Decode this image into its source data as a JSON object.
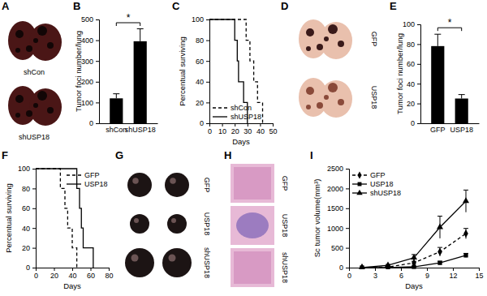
{
  "chart_data": [
    {
      "type": "bar",
      "title": "B",
      "categories": [
        "shCon",
        "shUSP18"
      ],
      "values": [
        120,
        395
      ],
      "errors": [
        22,
        60
      ],
      "color": "#000000",
      "ylim": [
        0,
        500
      ],
      "yticks": [
        0,
        100,
        200,
        300,
        400,
        500
      ],
      "y_label": "Tumor foci number/lung",
      "annotations": [
        "*"
      ]
    },
    {
      "type": "step",
      "title": "C",
      "x_label": "Days",
      "y_label": "Percentual surviving",
      "xlim": [
        0,
        50
      ],
      "xticks": [
        0,
        10,
        20,
        30,
        40,
        50
      ],
      "ylim": [
        0,
        100
      ],
      "yticks": [
        0,
        20,
        40,
        60,
        80,
        100
      ],
      "legend": "lower left",
      "series": [
        {
          "name": "shCon",
          "color": "#000000",
          "line_style": "dashed",
          "x": [
            0,
            29,
            32,
            35,
            38,
            42
          ],
          "values": [
            100,
            80,
            60,
            40,
            20,
            0
          ]
        },
        {
          "name": "shUSP18",
          "color": "#000000",
          "line_style": "solid",
          "x": [
            0,
            20,
            22,
            23,
            27,
            30
          ],
          "values": [
            100,
            80,
            60,
            40,
            20,
            0
          ]
        }
      ]
    },
    {
      "type": "bar",
      "title": "E",
      "categories": [
        "GFP",
        "USP18"
      ],
      "values": [
        78,
        25
      ],
      "errors": [
        12,
        4
      ],
      "color": "#000000",
      "ylim": [
        0,
        100
      ],
      "yticks": [
        0,
        20,
        40,
        60,
        80,
        100
      ],
      "y_label": "Tumor foci number/lung",
      "annotations": [
        "*"
      ]
    },
    {
      "type": "step",
      "title": "F",
      "x_label": "Days",
      "y_label": "Percentual surviving",
      "xlim": [
        0,
        80
      ],
      "xticks": [
        0,
        20,
        40,
        60,
        80
      ],
      "ylim": [
        0,
        100
      ],
      "yticks": [
        0,
        20,
        40,
        60,
        80,
        100
      ],
      "legend": "upper right",
      "series": [
        {
          "name": "GFP",
          "color": "#000000",
          "line_style": "dashed",
          "x": [
            0,
            27,
            32,
            35,
            40,
            45
          ],
          "values": [
            100,
            80,
            60,
            40,
            20,
            0
          ]
        },
        {
          "name": "USP18",
          "color": "#000000",
          "line_style": "solid",
          "x": [
            0,
            45,
            48,
            50,
            52,
            63
          ],
          "values": [
            100,
            80,
            60,
            40,
            20,
            0
          ]
        }
      ]
    },
    {
      "type": "line",
      "title": "I",
      "x_label": "Days",
      "y_label": "Sc tumor volume(mm³)",
      "xlim": [
        0,
        15
      ],
      "xticks": [
        0,
        3,
        6,
        9,
        12,
        15
      ],
      "ylim": [
        0,
        2500
      ],
      "yticks": [
        0,
        500,
        1000,
        1500,
        2000,
        2500
      ],
      "legend": "upper left",
      "series": [
        {
          "name": "GFP",
          "color": "#000000",
          "line_style": "dashed",
          "marker": "diamond",
          "x": [
            1.5,
            4.5,
            7.5,
            10.5,
            13.5
          ],
          "values": [
            0,
            15,
            120,
            400,
            860
          ],
          "errors": [
            0,
            5,
            40,
            110,
            130
          ]
        },
        {
          "name": "USP18",
          "color": "#000000",
          "line_style": "solid",
          "marker": "square",
          "x": [
            1.5,
            4.5,
            7.5,
            10.5,
            13.5
          ],
          "values": [
            0,
            0,
            20,
            120,
            310
          ],
          "errors": [
            0,
            0,
            10,
            40,
            50
          ]
        },
        {
          "name": "shUSP18",
          "color": "#000000",
          "line_style": "solid",
          "marker": "triangle",
          "x": [
            1.5,
            4.5,
            7.5,
            10.5,
            13.5
          ],
          "values": [
            0,
            60,
            250,
            1020,
            1680
          ],
          "errors": [
            0,
            20,
            80,
            280,
            280
          ]
        }
      ]
    }
  ],
  "images": [
    {
      "title": "A",
      "labels": [
        "shCon",
        "shUSP18"
      ]
    },
    {
      "title": "D",
      "labels": [
        "GFP",
        "USP18"
      ]
    },
    {
      "title": "G",
      "labels": [
        "GFP",
        "USP18",
        "shUSP18"
      ]
    },
    {
      "title": "H",
      "labels": [
        "GFP",
        "USP18",
        "shUSP18"
      ]
    }
  ]
}
